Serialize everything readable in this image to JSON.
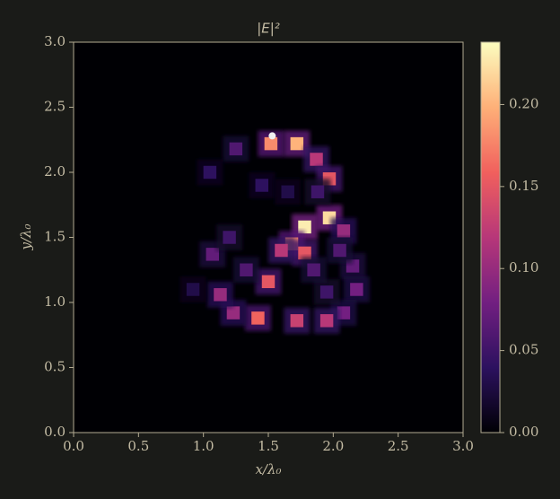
{
  "chart_data": {
    "type": "heatmap",
    "title": "|E|²",
    "x_label": "x/λ₀",
    "y_label": "y/λ₀",
    "x": [
      1.52,
      1.72,
      1.25,
      1.87,
      1.97,
      1.97,
      1.78,
      1.68,
      1.78,
      1.6,
      2.08,
      2.15,
      2.18,
      2.08,
      1.95,
      1.72,
      1.42,
      1.23,
      1.13,
      1.5,
      1.07,
      1.2,
      1.33,
      2.05,
      1.05,
      1.45,
      1.65,
      1.88,
      1.95,
      1.85,
      0.92
    ],
    "y": [
      2.22,
      2.22,
      2.18,
      2.1,
      1.95,
      1.65,
      1.58,
      1.45,
      1.38,
      1.4,
      1.55,
      1.28,
      1.1,
      0.92,
      0.86,
      0.86,
      0.88,
      0.92,
      1.06,
      1.16,
      1.37,
      1.5,
      1.25,
      1.4,
      2.0,
      1.9,
      1.85,
      1.85,
      1.08,
      1.25,
      1.1
    ],
    "values": [
      0.18,
      0.2,
      0.06,
      0.12,
      0.15,
      0.22,
      0.23,
      0.18,
      0.15,
      0.12,
      0.1,
      0.07,
      0.08,
      0.08,
      0.12,
      0.13,
      0.16,
      0.1,
      0.1,
      0.15,
      0.07,
      0.05,
      0.06,
      0.06,
      0.04,
      0.04,
      0.03,
      0.05,
      0.05,
      0.06,
      0.03
    ],
    "source": [
      1.53,
      2.28
    ],
    "colormap": [
      "#000004",
      "#2c115f",
      "#721f81",
      "#b73779",
      "#f1605d",
      "#feb078",
      "#fcfdbf"
    ],
    "clim": [
      0,
      0.238
    ],
    "cticks": [
      {
        "value": 0,
        "label": "0.00"
      },
      {
        "value": 0.05,
        "label": "0.05"
      },
      {
        "value": 0.1,
        "label": "0.10"
      },
      {
        "value": 0.15,
        "label": "0.15"
      },
      {
        "value": 0.2,
        "label": "0.20"
      }
    ],
    "xlim": [
      0,
      3
    ],
    "ylim": [
      0,
      3
    ],
    "xticks": [
      {
        "value": 0,
        "label": "0.0"
      },
      {
        "value": 0.5,
        "label": "0.5"
      },
      {
        "value": 1,
        "label": "1.0"
      },
      {
        "value": 1.5,
        "label": "1.5"
      },
      {
        "value": 2,
        "label": "2.0"
      },
      {
        "value": 2.5,
        "label": "2.5"
      },
      {
        "value": 3,
        "label": "3.0"
      }
    ],
    "yticks": [
      {
        "value": 0,
        "label": "0.0"
      },
      {
        "value": 0.5,
        "label": "0.5"
      },
      {
        "value": 1,
        "label": "1.0"
      },
      {
        "value": 1.5,
        "label": "1.5"
      },
      {
        "value": 2,
        "label": "2.0"
      },
      {
        "value": 2.5,
        "label": "2.5"
      },
      {
        "value": 3,
        "label": "3.0"
      }
    ]
  }
}
